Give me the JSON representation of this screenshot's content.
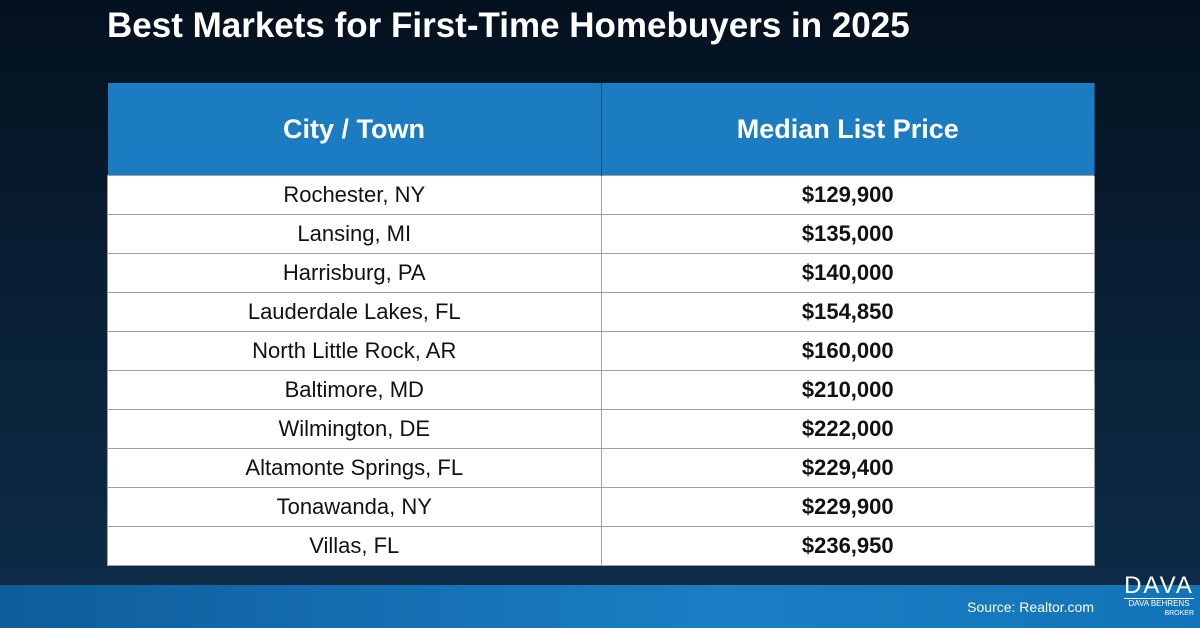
{
  "header": {
    "title": "Best Markets for First-Time Homebuyers in 2025"
  },
  "table": {
    "columns": [
      "City / Town",
      "Median List Price"
    ],
    "rows": [
      [
        "Rochester, NY",
        "$129,900"
      ],
      [
        "Lansing, MI",
        "$135,000"
      ],
      [
        "Harrisburg, PA",
        "$140,000"
      ],
      [
        "Lauderdale Lakes, FL",
        "$154,850"
      ],
      [
        "North Little Rock, AR",
        "$160,000"
      ],
      [
        "Baltimore, MD",
        "$210,000"
      ],
      [
        "Wilmington, DE",
        "$222,000"
      ],
      [
        "Altamonte Springs, FL",
        "$229,400"
      ],
      [
        "Tonawanda, NY",
        "$229,900"
      ],
      [
        "Villas, FL",
        "$236,950"
      ]
    ]
  },
  "footer": {
    "source": "Source: Realtor.com"
  },
  "logo": {
    "mark": "DAVA",
    "name": "DAVA BEHRENS",
    "role": "BROKER"
  }
}
